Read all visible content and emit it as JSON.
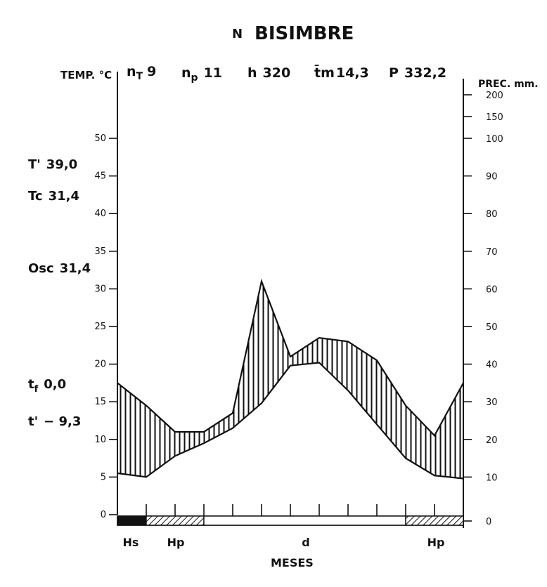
{
  "chart_data": {
    "type": "line",
    "title": "BISIMBRE",
    "title_prefix": "N",
    "header": {
      "nT": {
        "label": "n",
        "sub": "T",
        "value": "9"
      },
      "np": {
        "label": "n",
        "sub": "p",
        "value": "11"
      },
      "h": {
        "label": "h",
        "value": "320"
      },
      "tm": {
        "label": "t̄m",
        "value": "14,3"
      },
      "P": {
        "label": "P",
        "value": "332,2"
      }
    },
    "left_axis_label": "TEMP. °C",
    "right_axis_label": "PREC. mm.",
    "xlabel": "MESES",
    "left_ticks": [
      "0",
      "5",
      "10",
      "15",
      "20",
      "25",
      "30",
      "35",
      "40",
      "45",
      "50"
    ],
    "right_ticks": [
      "0",
      "10",
      "20",
      "30",
      "40",
      "50",
      "60",
      "70",
      "80",
      "90",
      "100",
      "150",
      "200"
    ],
    "left_stats": [
      {
        "label": "T'",
        "value": "39,0"
      },
      {
        "label": "Tc",
        "value": "31,4"
      },
      {
        "label": "Osc",
        "value": "31,4"
      },
      {
        "label": "t",
        "sub": "f",
        "value": "0,0"
      },
      {
        "label": "t'",
        "value": "− 9,3"
      }
    ],
    "ylim_temp": [
      0,
      50
    ],
    "ylim_prec": [
      0,
      100
    ],
    "x_nodes": [
      0,
      1,
      2,
      3,
      4,
      5,
      6,
      7,
      8,
      9,
      10,
      11,
      12
    ],
    "series": [
      {
        "name": "temp",
        "values": [
          5.5,
          5.0,
          7.8,
          9.5,
          11.5,
          14.8,
          19.8,
          20.2,
          16.5,
          12.0,
          7.5,
          5.2,
          4.8
        ]
      },
      {
        "name": "prec",
        "values": [
          35,
          29,
          22,
          22,
          27,
          62,
          42,
          47,
          46,
          41,
          29,
          21,
          35
        ]
      }
    ],
    "zones": [
      {
        "label": "Hs",
        "pattern": "solid",
        "from": 0,
        "to": 1
      },
      {
        "label": "Hp",
        "pattern": "hatch",
        "from": 1,
        "to": 3
      },
      {
        "label": "d",
        "pattern": "empty",
        "from": 3,
        "to": 10
      },
      {
        "label": "Hp",
        "pattern": "hatch",
        "from": 10,
        "to": 12
      }
    ]
  }
}
